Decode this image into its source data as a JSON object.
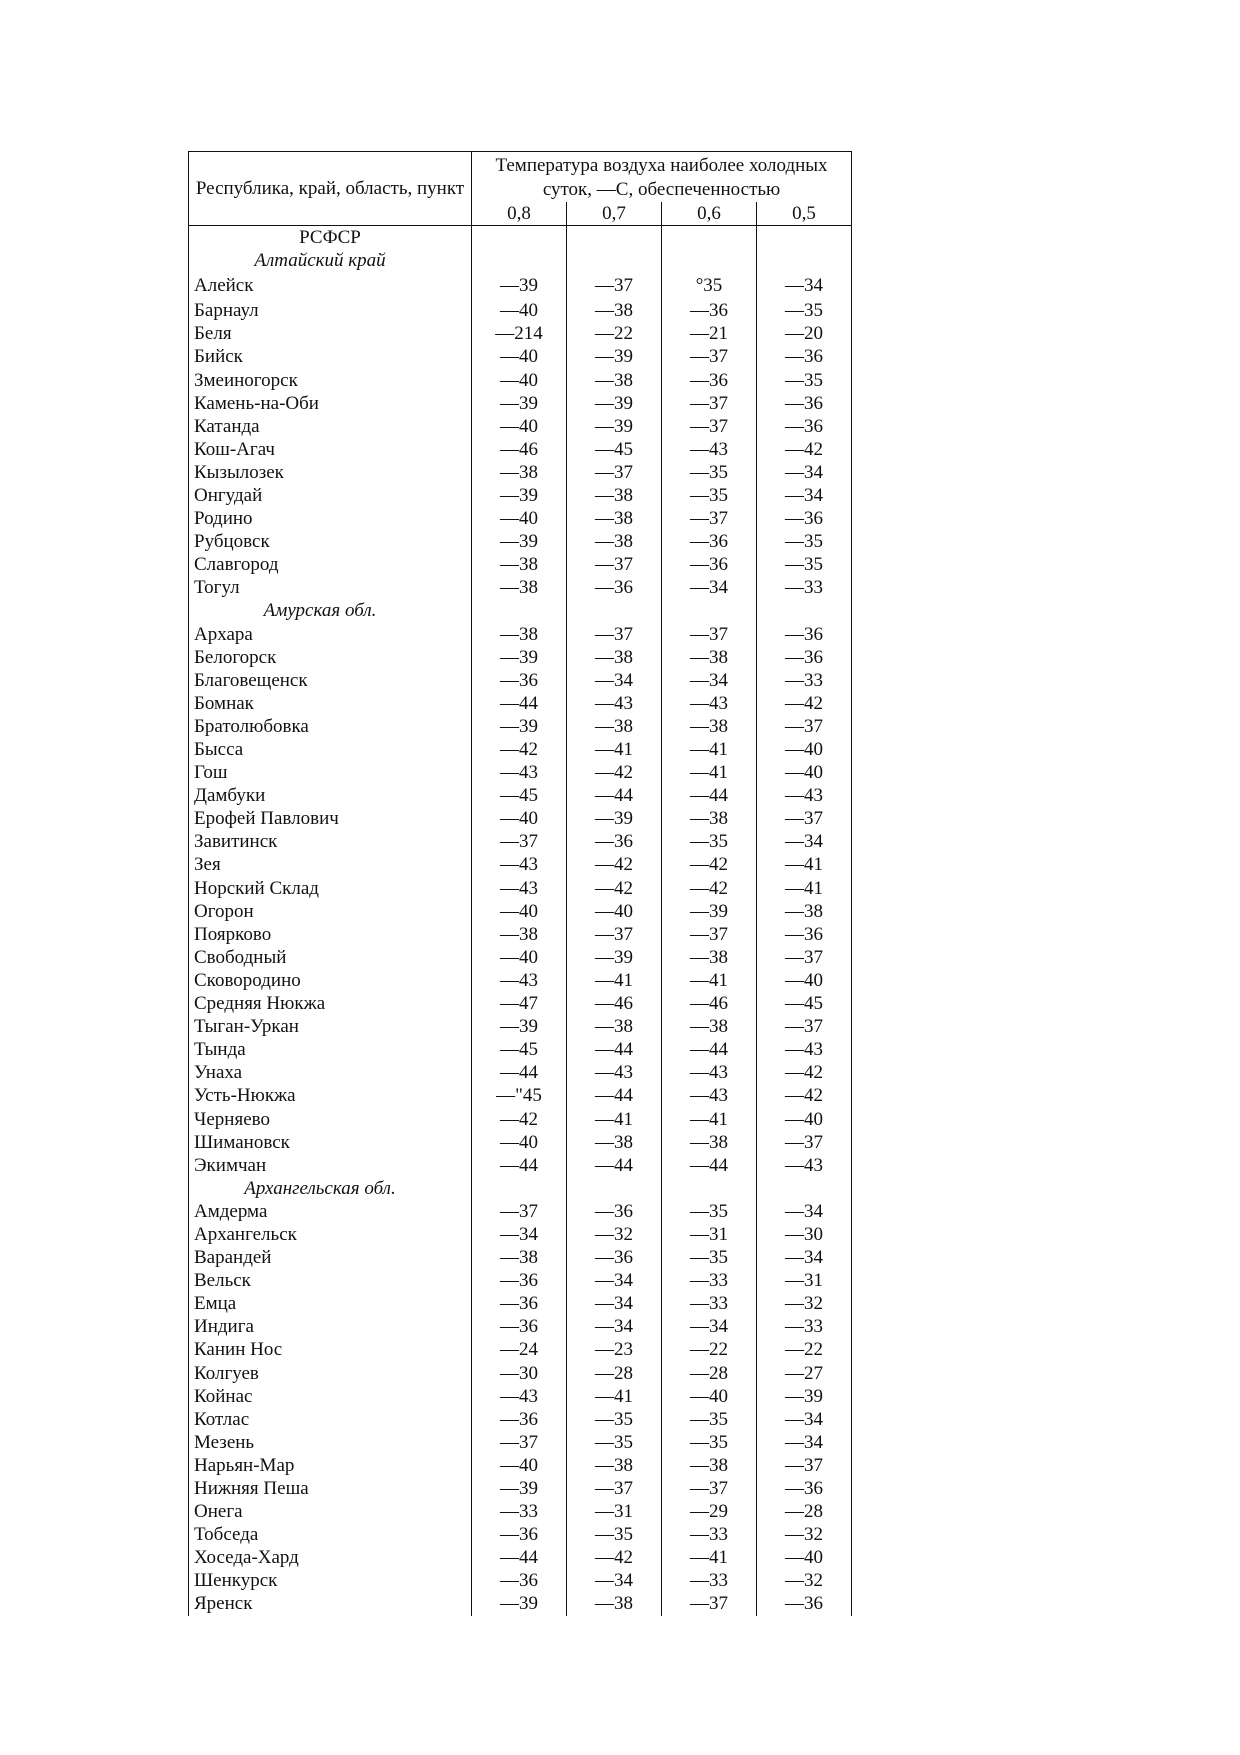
{
  "header": {
    "col_name": "Республика, край, область, пункт",
    "col_temp": "Температура воздуха наиболее холодных суток, —С, обеспеченностью",
    "probabilities": [
      "0,8",
      "0,7",
      "0,6",
      "0,5"
    ]
  },
  "country": "РСФСР",
  "sections": [
    {
      "region": "Алтайский край",
      "rows": [
        {
          "name": "Алейск",
          "values": [
            "—39",
            "—37",
            "°35",
            "—34"
          ]
        },
        {
          "name": "Барнаул",
          "values": [
            "—40",
            "—38",
            "—36",
            "—35"
          ]
        },
        {
          "name": "Беля",
          "values": [
            "—214",
            "—22",
            "—21",
            "—20"
          ]
        },
        {
          "name": "Бийск",
          "values": [
            "—40",
            "—39",
            "—37",
            "—36"
          ]
        },
        {
          "name": "Змеиногорск",
          "values": [
            "—40",
            "—38",
            "—36",
            "—35"
          ]
        },
        {
          "name": "Камень-на-Оби",
          "values": [
            "—39",
            "—39",
            "—37",
            "—36"
          ]
        },
        {
          "name": "Катанда",
          "values": [
            "—40",
            "—39",
            "—37",
            "—36"
          ]
        },
        {
          "name": "Кош-Агач",
          "values": [
            "—46",
            "—45",
            "—43",
            "—42"
          ]
        },
        {
          "name": "Кызылозек",
          "values": [
            "—38",
            "—37",
            "—35",
            "—34"
          ]
        },
        {
          "name": "Онгудай",
          "values": [
            "—39",
            "—38",
            "—35",
            "—34"
          ]
        },
        {
          "name": "Родино",
          "values": [
            "—40",
            "—38",
            "—37",
            "—36"
          ]
        },
        {
          "name": "Рубцовск",
          "values": [
            "—39",
            "—38",
            "—36",
            "—35"
          ]
        },
        {
          "name": "Славгород",
          "values": [
            "—38",
            "—37",
            "—36",
            "—35"
          ]
        },
        {
          "name": "Тогул",
          "values": [
            "—38",
            "—36",
            "—34",
            "—33"
          ]
        }
      ]
    },
    {
      "region": "Амурская обл.",
      "rows": [
        {
          "name": "Архара",
          "values": [
            "—38",
            "—37",
            "—37",
            "—36"
          ]
        },
        {
          "name": "Белогорск",
          "values": [
            "—39",
            "—38",
            "—38",
            "—36"
          ]
        },
        {
          "name": "Благовещенск",
          "values": [
            "—36",
            "—34",
            "—34",
            "—33"
          ]
        },
        {
          "name": "Бомнак",
          "values": [
            "—44",
            "—43",
            "—43",
            "—42"
          ]
        },
        {
          "name": "Братолюбовка",
          "values": [
            "—39",
            "—38",
            "—38",
            "—37"
          ]
        },
        {
          "name": "Бысса",
          "values": [
            "—42",
            "—41",
            "—41",
            "—40"
          ]
        },
        {
          "name": "Гош",
          "values": [
            "—43",
            "—42",
            "—41",
            "—40"
          ]
        },
        {
          "name": "Дамбуки",
          "values": [
            "—45",
            "—44",
            "—44",
            "—43"
          ]
        },
        {
          "name": "Ерофей Павлович",
          "values": [
            "—40",
            "—39",
            "—38",
            "—37"
          ]
        },
        {
          "name": "Завитинск",
          "values": [
            "—37",
            "—36",
            "—35",
            "—34"
          ]
        },
        {
          "name": "Зея",
          "values": [
            "—43",
            "—42",
            "—42",
            "—41"
          ]
        },
        {
          "name": "Норский Склад",
          "values": [
            "—43",
            "—42",
            "—42",
            "—41"
          ]
        },
        {
          "name": "Огорон",
          "values": [
            "—40",
            "—40",
            "—39",
            "—38"
          ]
        },
        {
          "name": "Поярково",
          "values": [
            "—38",
            "—37",
            "—37",
            "—36"
          ]
        },
        {
          "name": "Свободный",
          "values": [
            "—40",
            "—39",
            "—38",
            "—37"
          ]
        },
        {
          "name": "Сковородино",
          "values": [
            "—43",
            "—41",
            "—41",
            "—40"
          ]
        },
        {
          "name": "Средняя Нюкжа",
          "values": [
            "—47",
            "—46",
            "—46",
            "—45"
          ]
        },
        {
          "name": "Тыган-Уркан",
          "values": [
            "—39",
            "—38",
            "—38",
            "—37"
          ]
        },
        {
          "name": "Тында",
          "values": [
            "—45",
            "—44",
            "—44",
            "—43"
          ]
        },
        {
          "name": "Унаха",
          "values": [
            "—44",
            "—43",
            "—43",
            "—42"
          ]
        },
        {
          "name": "Усть-Нюкжа",
          "values": [
            "—\"45",
            "—44",
            "—43",
            "—42"
          ]
        },
        {
          "name": "Черняево",
          "values": [
            "—42",
            "—41",
            "—41",
            "—40"
          ]
        },
        {
          "name": "Шимановск",
          "values": [
            "—40",
            "—38",
            "—38",
            "—37"
          ]
        },
        {
          "name": "Экимчан",
          "values": [
            "—44",
            "—44",
            "—44",
            "—43"
          ]
        }
      ]
    },
    {
      "region": "Архангельская обл.",
      "rows": [
        {
          "name": "Амдерма",
          "values": [
            "—37",
            "—36",
            "—35",
            "—34"
          ]
        },
        {
          "name": "Архангельск",
          "values": [
            "—34",
            "—32",
            "—31",
            "—30"
          ]
        },
        {
          "name": "Варандей",
          "values": [
            "—38",
            "—36",
            "—35",
            "—34"
          ]
        },
        {
          "name": "Вельск",
          "values": [
            "—36",
            "—34",
            "—33",
            "—31"
          ]
        },
        {
          "name": "Емца",
          "values": [
            "—36",
            "—34",
            "—33",
            "—32"
          ]
        },
        {
          "name": "Индига",
          "values": [
            "—36",
            "—34",
            "—34",
            "—33"
          ]
        },
        {
          "name": "Канин Нос",
          "values": [
            "—24",
            "—23",
            "—22",
            "—22"
          ]
        },
        {
          "name": "Колгуев",
          "values": [
            "—30",
            "—28",
            "—28",
            "—27"
          ]
        },
        {
          "name": "Койнас",
          "values": [
            "—43",
            "—41",
            "—40",
            "—39"
          ]
        },
        {
          "name": "Котлас",
          "values": [
            "—36",
            "—35",
            "—35",
            "—34"
          ]
        },
        {
          "name": "Мезень",
          "values": [
            "—37",
            "—35",
            "—35",
            "—34"
          ]
        },
        {
          "name": "Нарьян-Мар",
          "values": [
            "—40",
            "—38",
            "—38",
            "—37"
          ]
        },
        {
          "name": "Нижняя Пеша",
          "values": [
            "—39",
            "—37",
            "—37",
            "—36"
          ]
        },
        {
          "name": "Онега",
          "values": [
            "—33",
            "—31",
            "—29",
            "—28"
          ]
        },
        {
          "name": "Тобседа",
          "values": [
            "—36",
            "—35",
            "—33",
            "—32"
          ]
        },
        {
          "name": "Хоседа-Хард",
          "values": [
            "—44",
            "—42",
            "—41",
            "—40"
          ]
        },
        {
          "name": "Шенкурск",
          "values": [
            "—36",
            "—34",
            "—33",
            "—32"
          ]
        },
        {
          "name": "Яренск",
          "values": [
            "—39",
            "—38",
            "—37",
            "—36"
          ]
        }
      ]
    }
  ]
}
